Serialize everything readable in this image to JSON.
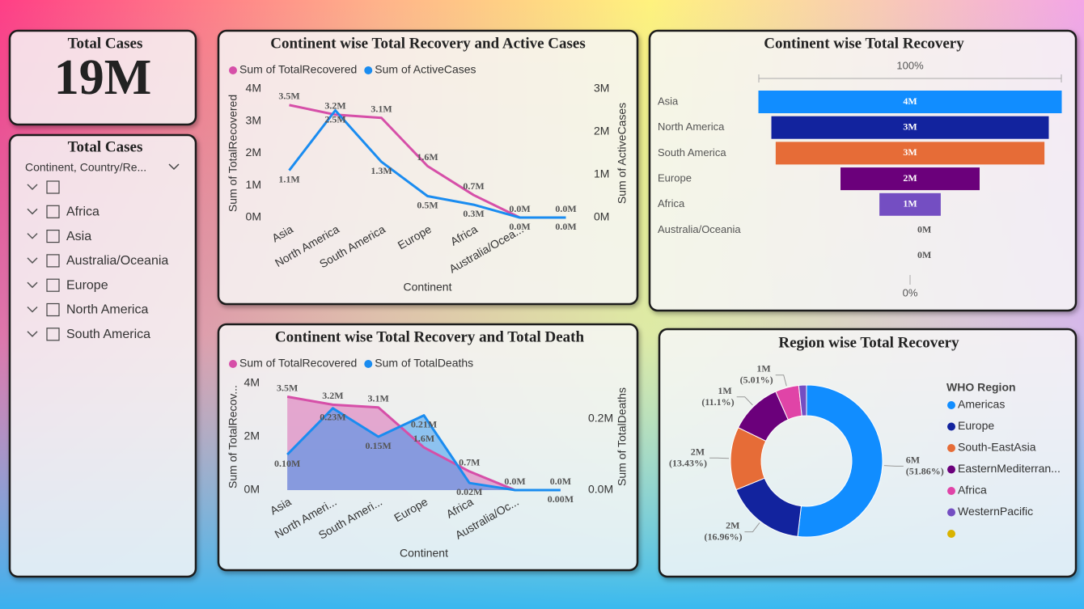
{
  "card": {
    "title": "Total Cases",
    "value": "19M"
  },
  "slicer": {
    "title": "Total Cases",
    "field": "Continent, Country/Re...",
    "items": [
      null,
      "Africa",
      "Asia",
      "Australia/Oceania",
      "Europe",
      "North America",
      "South America"
    ]
  },
  "chart_data": [
    {
      "type": "line",
      "title": "Continent wise Total Recovery and Active Cases",
      "x_label": "Continent",
      "y_label": "Sum of TotalRecovered",
      "y2_label": "Sum of ActiveCases",
      "categories": [
        "Asia",
        "North America",
        "South America",
        "Europe",
        "Africa",
        "Australia/Ocea...",
        null
      ],
      "series": [
        {
          "name": "Sum of TotalRecovered",
          "color": "#d64fa8",
          "values": [
            3.5,
            3.2,
            3.1,
            1.6,
            0.7,
            0.0,
            0.0
          ],
          "value_labels": [
            "3.5M",
            "3.2M",
            "3.1M",
            "1.6M",
            "0.7M",
            "0.0M",
            "0.0M"
          ]
        },
        {
          "name": "Sum of ActiveCases",
          "color": "#1a8cf0",
          "axis": "y2",
          "values": [
            1.1,
            2.5,
            1.3,
            0.5,
            0.3,
            0.0,
            0.0
          ],
          "value_labels": [
            "1.1M",
            "2.5M",
            "1.3M",
            "0.5M",
            "0.3M",
            "0.0M",
            "0.0M"
          ]
        }
      ],
      "ylim": [
        0,
        4
      ],
      "yticks": [
        {
          "value": 0,
          "label": "0M"
        },
        {
          "value": 1,
          "label": "1M"
        },
        {
          "value": 2,
          "label": "2M"
        },
        {
          "value": 3,
          "label": "3M"
        },
        {
          "value": 4,
          "label": "4M"
        }
      ],
      "y2lim": [
        0,
        3
      ],
      "y2ticks": [
        {
          "value": 0,
          "label": "0M"
        },
        {
          "value": 1,
          "label": "1M"
        },
        {
          "value": 2,
          "label": "2M"
        },
        {
          "value": 3,
          "label": "3M"
        }
      ]
    },
    {
      "type": "area",
      "title": "Continent wise Total Recovery and Total Death",
      "x_label": "Continent",
      "y_label": "Sum of TotalRecov...",
      "y2_label": "Sum of TotalDeaths",
      "categories": [
        "Asia",
        "North Ameri...",
        "South Ameri...",
        "Europe",
        "Africa",
        "Australia/Oc...",
        null
      ],
      "series": [
        {
          "name": "Sum of TotalRecovered",
          "color": "#d64fa8",
          "values": [
            3.5,
            3.2,
            3.1,
            1.6,
            0.7,
            0.0,
            0.0
          ],
          "value_labels": [
            "3.5M",
            "3.2M",
            "3.1M",
            "1.6M",
            "0.7M",
            "0.0M",
            "0.0M"
          ]
        },
        {
          "name": "Sum of TotalDeaths",
          "color": "#1a8cf0",
          "axis": "y2",
          "values": [
            0.1,
            0.23,
            0.15,
            0.21,
            0.02,
            0.0,
            0.0
          ],
          "value_labels": [
            "0.10M",
            "0.23M",
            "0.15M",
            "0.21M",
            "0.02M",
            null,
            "0.00M"
          ]
        }
      ],
      "ylim": [
        0,
        4
      ],
      "yticks": [
        {
          "value": 0,
          "label": "0M"
        },
        {
          "value": 2,
          "label": "2M"
        },
        {
          "value": 4,
          "label": "4M"
        }
      ],
      "y2lim": [
        0,
        0.3
      ],
      "y2ticks": [
        {
          "value": 0,
          "label": "0.0M"
        },
        {
          "value": 0.2,
          "label": "0.2M"
        }
      ]
    },
    {
      "type": "funnel",
      "title": "Continent wise Total Recovery",
      "top_label": "100%",
      "bottom_label": "0%",
      "categories": [
        "Asia",
        "North America",
        "South America",
        "Europe",
        "Africa",
        "Australia/Oceania",
        null
      ],
      "values": [
        3.5,
        3.2,
        3.1,
        1.6,
        0.7,
        0.0,
        0.0
      ],
      "value_labels": [
        "4M",
        "3M",
        "3M",
        "2M",
        "1M",
        "0M",
        "0M"
      ],
      "colors": [
        "#118dff",
        "#12239e",
        "#e66c37",
        "#6b007b",
        "#744ec2",
        "#d9b300",
        "#e044a7"
      ]
    },
    {
      "type": "donut",
      "title": "Region wise Total Recovery",
      "legend_title": "WHO Region",
      "categories": [
        "Americas",
        "Europe",
        "South-EastAsia",
        "EasternMediterran...",
        "Africa",
        "WesternPacific",
        null
      ],
      "values": [
        51.86,
        16.96,
        13.43,
        11.1,
        5.01,
        1.64,
        0
      ],
      "value_labels": [
        "6M (51.86%)",
        "2M (16.96%)",
        "2M (13.43%)",
        "1M (11.1%)",
        "1M (5.01%)",
        null,
        null
      ],
      "colors": [
        "#118dff",
        "#12239e",
        "#e66c37",
        "#6b007b",
        "#e044a7",
        "#744ec2",
        "#d9b300"
      ]
    }
  ]
}
